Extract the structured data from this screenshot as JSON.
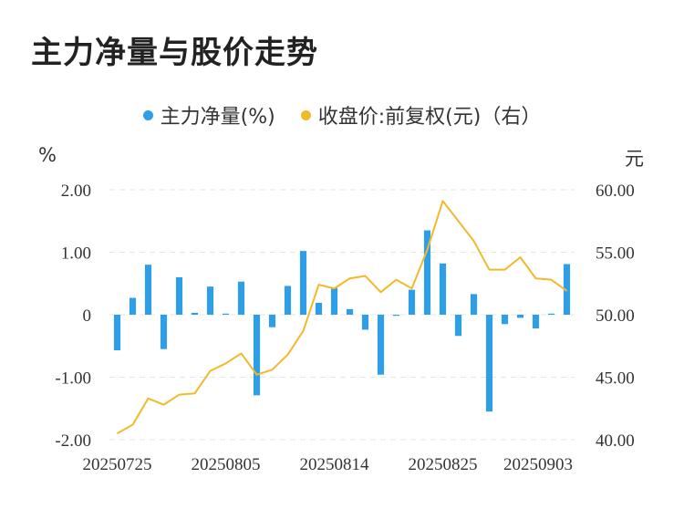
{
  "title": "主力净量与股价走势",
  "legend": {
    "series1": "主力净量(%)",
    "series2": "收盘价:前复权(元)（右）"
  },
  "units": {
    "left": "%",
    "right": "元"
  },
  "colors": {
    "bar": "#2f9ee8",
    "line": "#f2b92b",
    "grid": "#e6e6e6"
  },
  "chart_data": {
    "type": "bar+line",
    "x_ticks": [
      "20250725",
      "20250805",
      "20250814",
      "20250825",
      "20250903"
    ],
    "y_left": {
      "ticks": [
        "2.00",
        "1.00",
        "0",
        "-1.00",
        "-2.00"
      ],
      "range": [
        -2,
        2
      ]
    },
    "y_right": {
      "ticks": [
        "60.00",
        "55.00",
        "50.00",
        "45.00",
        "40.00"
      ],
      "range": [
        40,
        60
      ]
    },
    "series": [
      {
        "name": "主力净量(%)",
        "kind": "bar",
        "values": [
          -0.57,
          0.27,
          0.8,
          -0.55,
          0.6,
          0.03,
          0.45,
          0.01,
          0.53,
          -1.29,
          -0.2,
          0.46,
          1.02,
          0.19,
          0.43,
          0.09,
          -0.24,
          -0.96,
          -0.01,
          0.4,
          1.35,
          0.82,
          -0.34,
          0.33,
          -1.55,
          -0.15,
          -0.05,
          -0.22,
          0.01,
          0.81
        ]
      },
      {
        "name": "收盘价:前复权(元)（右）",
        "kind": "line",
        "values": [
          40.5,
          41.2,
          43.3,
          42.8,
          43.6,
          43.7,
          45.5,
          46.1,
          46.9,
          45.2,
          45.6,
          46.8,
          48.7,
          52.4,
          52.1,
          52.9,
          53.1,
          51.8,
          52.8,
          52.1,
          55.2,
          59.1,
          57.5,
          55.9,
          53.6,
          53.6,
          54.6,
          52.9,
          52.8,
          51.9
        ]
      }
    ]
  }
}
